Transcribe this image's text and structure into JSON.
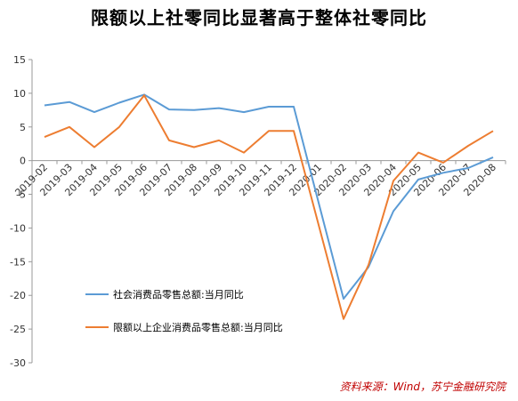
{
  "title": "限额以上社零同比显著高于整体社零同比",
  "source": "资料来源：Wind，苏宁金融研究院",
  "chart_data": {
    "type": "line",
    "categories": [
      "2019-02",
      "2019-03",
      "2019-04",
      "2019-05",
      "2019-06",
      "2019-07",
      "2019-08",
      "2019-09",
      "2019-10",
      "2019-11",
      "2019-12",
      "2020-01",
      "2020-02",
      "2020-03",
      "2020-04",
      "2020-05",
      "2020-06",
      "2020-07",
      "2020-08"
    ],
    "ylim": [
      -30,
      15
    ],
    "yticks": [
      15,
      10,
      5,
      0,
      -5,
      -10,
      -15,
      -20,
      -25,
      -30
    ],
    "series": [
      {
        "name": "社会消费品零售总额:当月同比",
        "color": "#5b9bd5",
        "values": [
          8.2,
          8.7,
          7.2,
          8.6,
          9.8,
          7.6,
          7.5,
          7.8,
          7.2,
          8.0,
          8.0,
          null,
          -20.5,
          -15.8,
          -7.5,
          -2.8,
          -1.8,
          -1.1,
          0.5
        ]
      },
      {
        "name": "限额以上企业消费品零售总额:当月同比",
        "color": "#ed7d31",
        "values": [
          3.5,
          5.0,
          2.0,
          5.0,
          9.7,
          3.0,
          2.0,
          3.0,
          1.2,
          4.4,
          4.4,
          null,
          -23.5,
          -15.5,
          -3.0,
          1.2,
          -0.3,
          2.2,
          4.4
        ]
      }
    ]
  }
}
